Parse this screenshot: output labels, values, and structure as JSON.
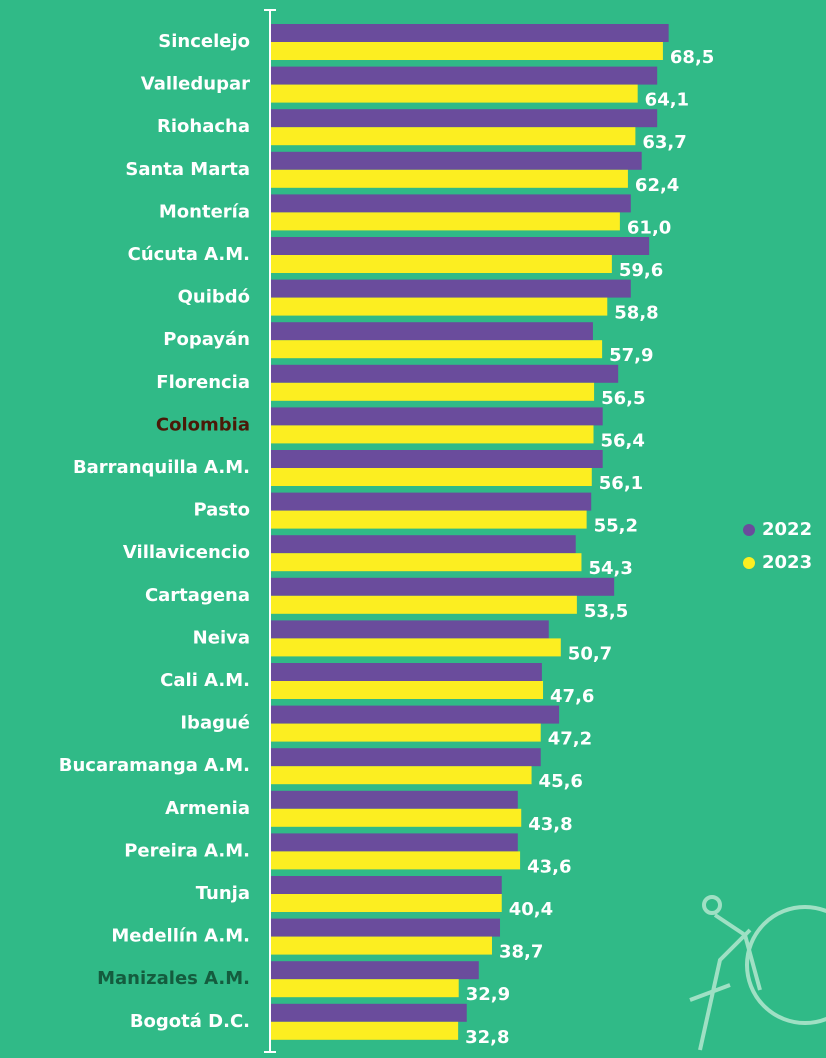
{
  "chart_data": {
    "type": "grouped-hbar",
    "categories": [
      "Sincelejo",
      "Valledupar",
      "Riohacha",
      "Santa Marta",
      "Montería",
      "Cúcuta A.M.",
      "Quibdó",
      "Popayán",
      "Florencia",
      "Colombia",
      "Barranquilla A.M.",
      "Pasto",
      "Villavicencio",
      "Cartagena",
      "Neiva",
      "Cali A.M.",
      "Ibagué",
      "Bucaramanga A.M.",
      "Armenia",
      "Pereira A.M.",
      "Tunja",
      "Medellín A.M.",
      "Manizales A.M.",
      "Bogotá D.C."
    ],
    "category_colors": [
      "#ffffff",
      "#ffffff",
      "#ffffff",
      "#ffffff",
      "#ffffff",
      "#ffffff",
      "#ffffff",
      "#ffffff",
      "#ffffff",
      "#4a1a08",
      "#ffffff",
      "#ffffff",
      "#ffffff",
      "#ffffff",
      "#ffffff",
      "#ffffff",
      "#ffffff",
      "#ffffff",
      "#ffffff",
      "#ffffff",
      "#ffffff",
      "#ffffff",
      "#145c3e",
      "#ffffff"
    ],
    "series": [
      {
        "name": "2022",
        "color": "#6a4c9c",
        "values": [
          69.5,
          67.5,
          67.5,
          64.8,
          62.9,
          66.1,
          62.9,
          56.3,
          60.7,
          58.0,
          58.0,
          56.0,
          53.3,
          60.0,
          48.6,
          47.4,
          50.4,
          47.2,
          43.2,
          43.2,
          40.4,
          40.1,
          36.4,
          34.3
        ]
      },
      {
        "name": "2023",
        "color": "#fcee21",
        "values": [
          68.5,
          64.1,
          63.7,
          62.4,
          61.0,
          59.6,
          58.8,
          57.9,
          56.5,
          56.4,
          56.1,
          55.2,
          54.3,
          53.5,
          50.7,
          47.6,
          47.2,
          45.6,
          43.8,
          43.6,
          40.4,
          38.7,
          32.9,
          32.8
        ],
        "value_labels": [
          "68,5",
          "64,1",
          "63,7",
          "62,4",
          "61,0",
          "59,6",
          "58,8",
          "57,9",
          "56,5",
          "56,4",
          "56,1",
          "55,2",
          "54,3",
          "53,5",
          "50,7",
          "47,6",
          "47,2",
          "45,6",
          "43,8",
          "43,6",
          "40,4",
          "38,7",
          "32,9",
          "32,8"
        ]
      }
    ],
    "xlim": [
      0,
      92.4
    ],
    "legend": "right"
  }
}
